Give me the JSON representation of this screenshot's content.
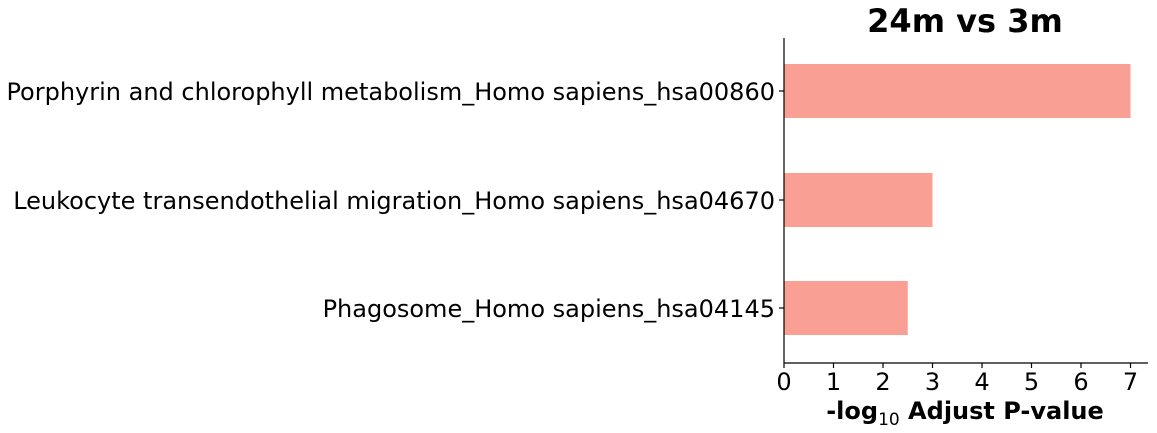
{
  "chart_data": {
    "type": "bar",
    "orientation": "horizontal",
    "title": "24m vs 3m",
    "categories": [
      "Porphyrin and chlorophyll metabolism_Homo sapiens_hsa00860",
      "Leukocyte transendothelial migration_Homo sapiens_hsa04670",
      "Phagosome_Homo sapiens_hsa04145"
    ],
    "values": [
      7.0,
      3.0,
      2.5
    ],
    "xlabel_prefix": "-log",
    "xlabel_subscript": "10",
    "xlabel_suffix": " Adjust P-value",
    "ylabel": "",
    "xlim": [
      0,
      7.3
    ],
    "xticks": [
      "0",
      "1",
      "2",
      "3",
      "4",
      "5",
      "6",
      "7"
    ],
    "bar_color": "#fa9f93",
    "grid": false,
    "legend": "none"
  }
}
